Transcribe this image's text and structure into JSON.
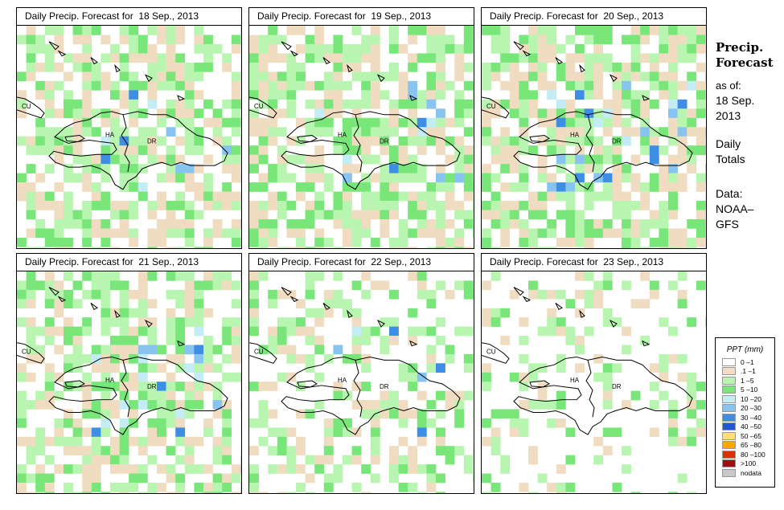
{
  "panels": [
    {
      "title": "Daily Precip. Forecast for  18 Sep., 2013",
      "wet": 0.62,
      "heavy": 0.07,
      "seed": 11
    },
    {
      "title": "Daily Precip. Forecast for  19 Sep., 2013",
      "wet": 0.66,
      "heavy": 0.08,
      "seed": 23
    },
    {
      "title": "Daily Precip. Forecast for  20 Sep., 2013",
      "wet": 0.7,
      "heavy": 0.16,
      "seed": 37
    },
    {
      "title": "Daily Precip. Forecast for  21 Sep., 2013",
      "wet": 0.64,
      "heavy": 0.12,
      "seed": 41
    },
    {
      "title": "Daily Precip. Forecast for  22 Sep., 2013",
      "wet": 0.38,
      "heavy": 0.04,
      "seed": 53
    },
    {
      "title": "Daily Precip. Forecast for  23 Sep., 2013",
      "wet": 0.24,
      "heavy": 0.0,
      "seed": 67
    }
  ],
  "map_labels": {
    "cuba": "CU",
    "haiti": "HA",
    "dominican_republic": "DR"
  },
  "sidebar": {
    "title_line1": "Precip.",
    "title_line2": "Forecast",
    "asof_label": "as of:",
    "date_line1": "18 Sep.",
    "date_line2": "2013",
    "totals_line1": "Daily",
    "totals_line2": "Totals",
    "data_line1": "Data:",
    "data_line2": "NOAA–",
    "data_line3": "GFS"
  },
  "legend": {
    "title": "PPT (mm)",
    "items": [
      {
        "label": "0 –1",
        "color": "#ffffff"
      },
      {
        "label": ".1 –1",
        "color": "#f0dcc0"
      },
      {
        "label": "1 –5",
        "color": "#b8f5b0"
      },
      {
        "label": "5 –10",
        "color": "#78e678"
      },
      {
        "label": "10 –20",
        "color": "#c4ecf5"
      },
      {
        "label": "20 –30",
        "color": "#88c4f0"
      },
      {
        "label": "30 –40",
        "color": "#3f8ee6"
      },
      {
        "label": "40 –50",
        "color": "#1f5ad6"
      },
      {
        "label": "50 –65",
        "color": "#ffe070"
      },
      {
        "label": "65 –80",
        "color": "#ffa500"
      },
      {
        "label": "80 –100",
        "color": "#e03000"
      },
      {
        "label": ">100",
        "color": "#a01010"
      },
      {
        "label": "nodata",
        "color": "#c8c8c8"
      }
    ]
  }
}
